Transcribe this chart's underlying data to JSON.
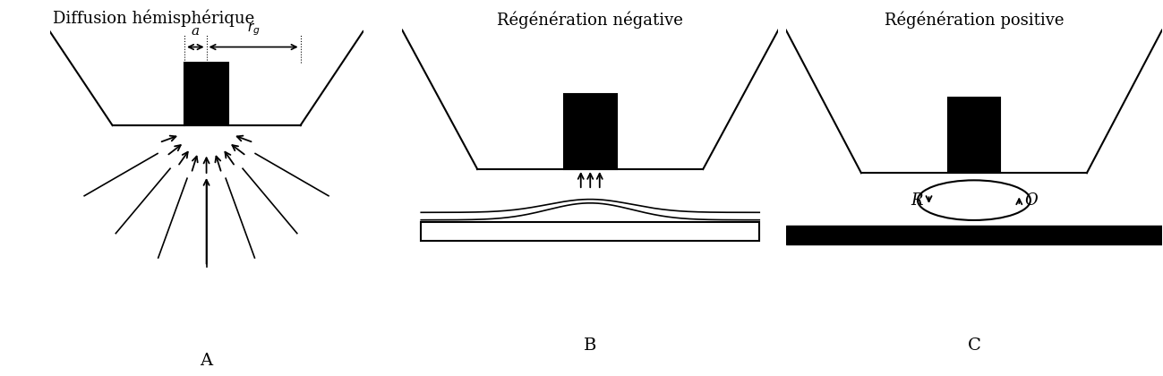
{
  "title_A": "Diffusion hémisphérique",
  "title_B": "Régénération négative",
  "title_C": "Régénération positive",
  "label_A": "A",
  "label_B": "B",
  "label_C": "C",
  "label_R": "R",
  "label_O": "O",
  "label_a": "a",
  "label_rg": "$r_g$",
  "bg_color": "#ffffff",
  "line_color": "#000000",
  "title_fontsize": 13,
  "label_fontsize": 14
}
